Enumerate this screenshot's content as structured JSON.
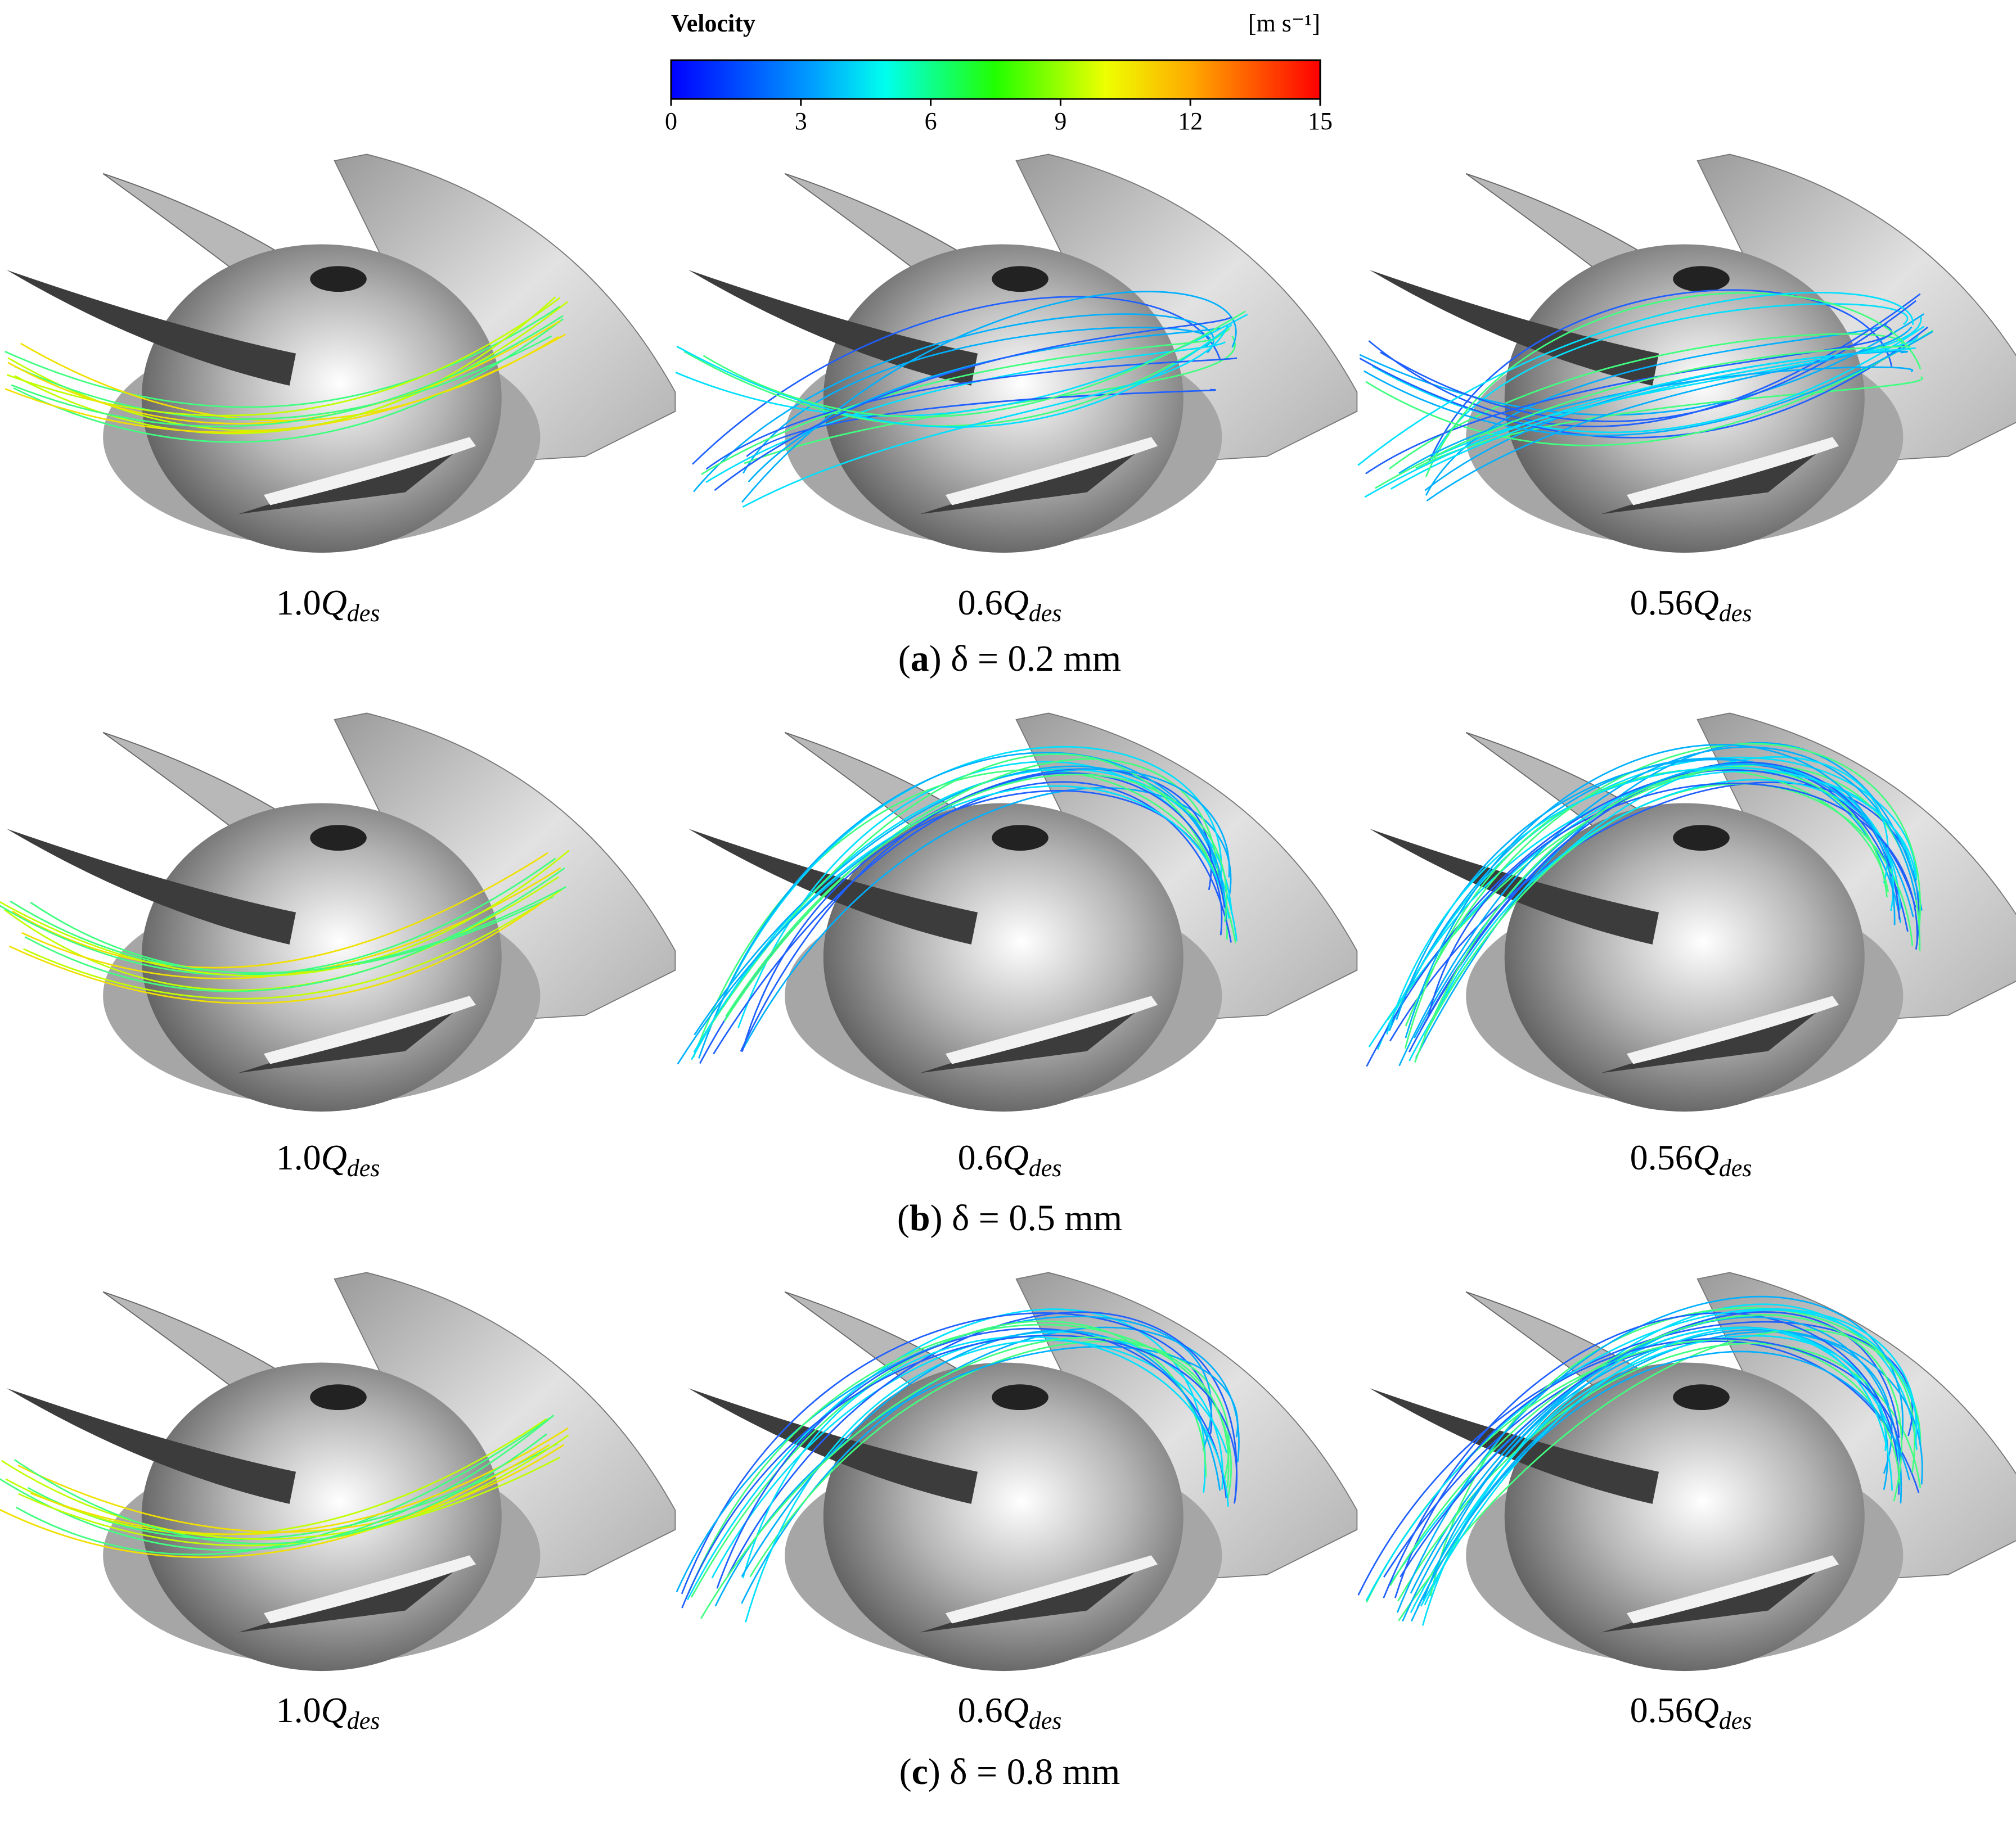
{
  "colorbar": {
    "title": "Velocity",
    "unit": "[m s⁻¹]",
    "range": [
      0,
      15
    ],
    "ticks": [
      0,
      3,
      6,
      9,
      12,
      15
    ]
  },
  "rows": [
    {
      "caption": {
        "open": "(",
        "letter": "a",
        "text": ") δ = 0.2 mm"
      },
      "panels": [
        {
          "prefix": "1.0",
          "symbol": "Q",
          "subscript": "des"
        },
        {
          "prefix": "0.6",
          "symbol": "Q",
          "subscript": "des"
        },
        {
          "prefix": "0.56",
          "symbol": "Q",
          "subscript": "des"
        }
      ]
    },
    {
      "caption": {
        "open": "(",
        "letter": "b",
        "text": ") δ = 0.5 mm"
      },
      "panels": [
        {
          "prefix": "1.0",
          "symbol": "Q",
          "subscript": "des"
        },
        {
          "prefix": "0.6",
          "symbol": "Q",
          "subscript": "des"
        },
        {
          "prefix": "0.56",
          "symbol": "Q",
          "subscript": "des"
        }
      ]
    },
    {
      "caption": {
        "open": "(",
        "letter": "c",
        "text": ") δ = 0.8 mm"
      },
      "panels": [
        {
          "prefix": "1.0",
          "symbol": "Q",
          "subscript": "des"
        },
        {
          "prefix": "0.6",
          "symbol": "Q",
          "subscript": "des"
        },
        {
          "prefix": "0.56",
          "symbol": "Q",
          "subscript": "des"
        }
      ]
    }
  ]
}
